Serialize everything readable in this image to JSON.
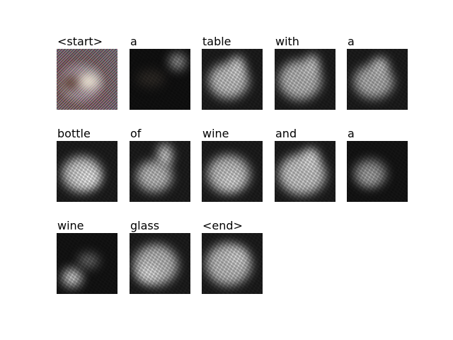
{
  "words": [
    "<start>",
    "a",
    "table",
    "with",
    "a",
    "bottle",
    "of",
    "wine",
    "and",
    "a",
    "wine",
    "glass",
    "<end>"
  ]
}
